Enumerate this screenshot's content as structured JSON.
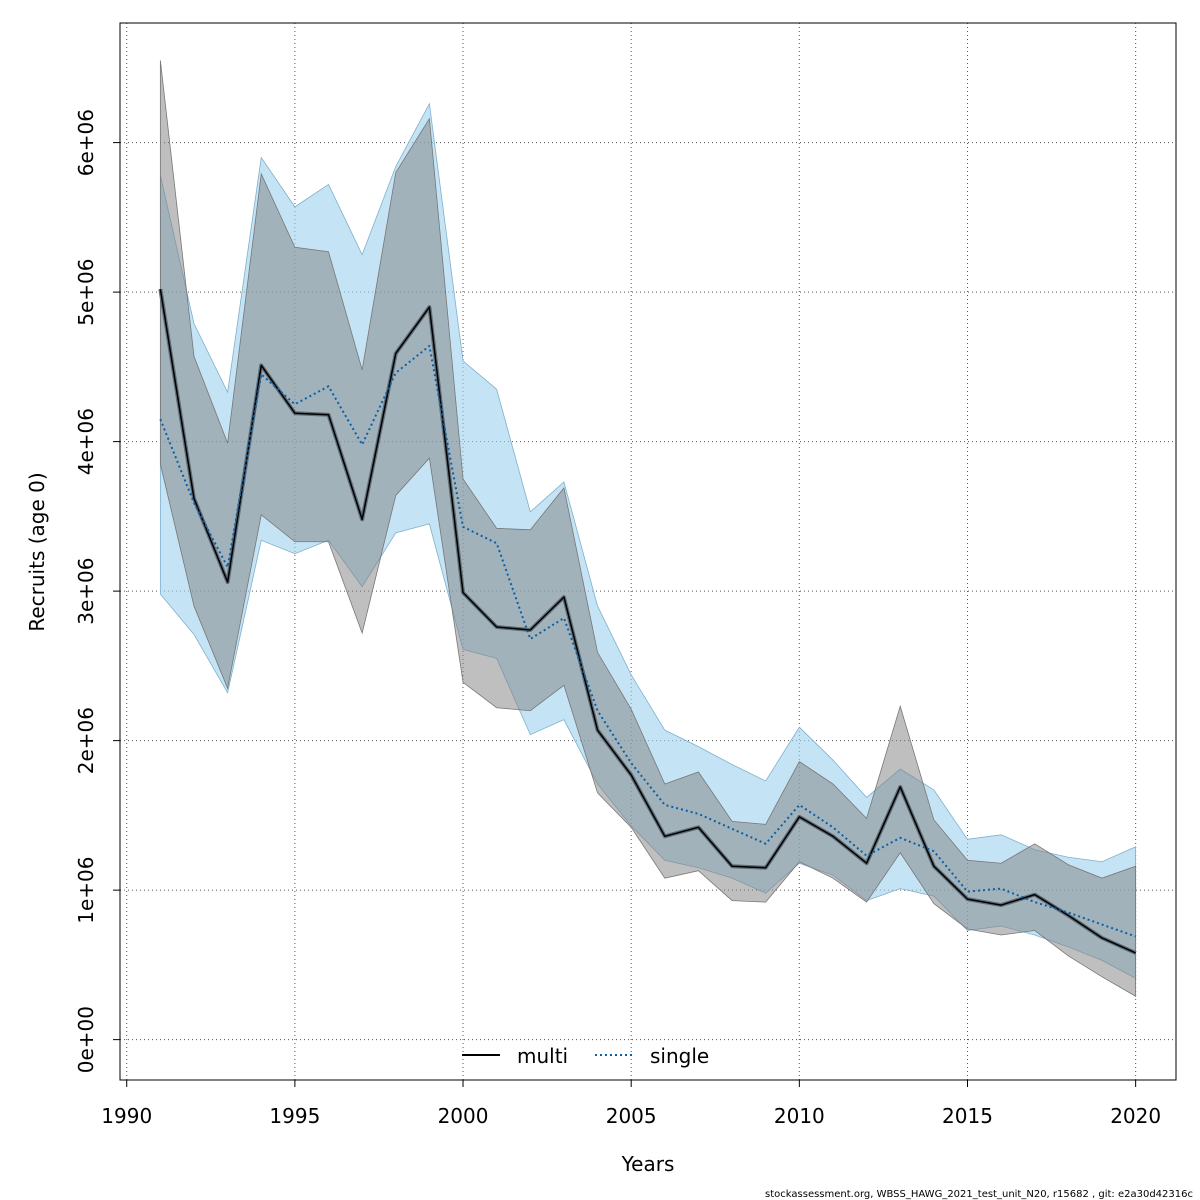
{
  "chart_data": {
    "type": "area",
    "xlabel": "Years",
    "ylabel": "Recruits (age 0)",
    "xlim": [
      1989.8,
      2021.2
    ],
    "ylim": [
      -270000,
      6800000
    ],
    "x_ticks": [
      1990,
      1995,
      2000,
      2005,
      2010,
      2015,
      2020
    ],
    "x_tick_labels": [
      "1990",
      "1995",
      "2000",
      "2005",
      "2010",
      "2015",
      "2020"
    ],
    "y_ticks": [
      0,
      1000000,
      2000000,
      3000000,
      4000000,
      5000000,
      6000000
    ],
    "y_tick_labels": [
      "0e+00",
      "1e+06",
      "2e+06",
      "3e+06",
      "4e+06",
      "5e+06",
      "6e+06"
    ],
    "grid": true,
    "legend_position": "bottom-center",
    "x": [
      1991,
      1992,
      1993,
      1994,
      1995,
      1996,
      1997,
      1998,
      1999,
      2000,
      2001,
      2002,
      2003,
      2004,
      2005,
      2006,
      2007,
      2008,
      2009,
      2010,
      2011,
      2012,
      2013,
      2014,
      2015,
      2016,
      2017,
      2018,
      2019,
      2020
    ],
    "series": [
      {
        "name": "multi",
        "color": "#000000",
        "line_style": "solid",
        "band_color": "#808080",
        "values": [
          5020000,
          3620000,
          3060000,
          4510000,
          4190000,
          4180000,
          3480000,
          4590000,
          4900000,
          2990000,
          2760000,
          2740000,
          2960000,
          2070000,
          1770000,
          1360000,
          1420000,
          1160000,
          1150000,
          1490000,
          1360000,
          1180000,
          1690000,
          1160000,
          940000,
          900000,
          970000,
          830000,
          680000,
          580000
        ],
        "lower": [
          3850000,
          2900000,
          2350000,
          3510000,
          3330000,
          3330000,
          2720000,
          3640000,
          3890000,
          2390000,
          2220000,
          2200000,
          2370000,
          1650000,
          1420000,
          1080000,
          1130000,
          930000,
          920000,
          1190000,
          1080000,
          920000,
          1250000,
          910000,
          740000,
          700000,
          730000,
          560000,
          420000,
          290000
        ],
        "upper": [
          6550000,
          4570000,
          3990000,
          5790000,
          5300000,
          5270000,
          4480000,
          5800000,
          6160000,
          3750000,
          3420000,
          3410000,
          3690000,
          2590000,
          2210000,
          1710000,
          1790000,
          1460000,
          1440000,
          1860000,
          1710000,
          1480000,
          2230000,
          1470000,
          1200000,
          1180000,
          1310000,
          1170000,
          1080000,
          1160000
        ]
      },
      {
        "name": "single",
        "color": "#0b5fa5",
        "line_style": "dotted",
        "band_color": "#9dd2ee",
        "values": [
          4150000,
          3590000,
          3160000,
          4450000,
          4250000,
          4370000,
          3980000,
          4460000,
          4640000,
          3430000,
          3320000,
          2680000,
          2820000,
          2200000,
          1850000,
          1570000,
          1510000,
          1410000,
          1310000,
          1570000,
          1420000,
          1230000,
          1350000,
          1260000,
          990000,
          1010000,
          920000,
          850000,
          770000,
          690000
        ],
        "lower": [
          2980000,
          2710000,
          2320000,
          3340000,
          3250000,
          3340000,
          3030000,
          3390000,
          3450000,
          2610000,
          2550000,
          2040000,
          2140000,
          1710000,
          1430000,
          1200000,
          1150000,
          1080000,
          980000,
          1180000,
          1100000,
          930000,
          1010000,
          960000,
          730000,
          760000,
          700000,
          620000,
          530000,
          410000
        ],
        "upper": [
          5780000,
          4790000,
          4330000,
          5900000,
          5570000,
          5720000,
          5250000,
          5840000,
          6260000,
          4540000,
          4350000,
          3530000,
          3730000,
          2900000,
          2440000,
          2070000,
          1960000,
          1840000,
          1730000,
          2090000,
          1870000,
          1620000,
          1810000,
          1670000,
          1340000,
          1370000,
          1270000,
          1220000,
          1190000,
          1290000
        ]
      }
    ]
  },
  "legend": {
    "items": [
      {
        "label": "multi"
      },
      {
        "label": "single"
      }
    ]
  },
  "footer": {
    "text": "stockassessment.org, WBSS_HAWG_2021_test_unit_N20, r15682 , git: e2a30d42316c"
  }
}
